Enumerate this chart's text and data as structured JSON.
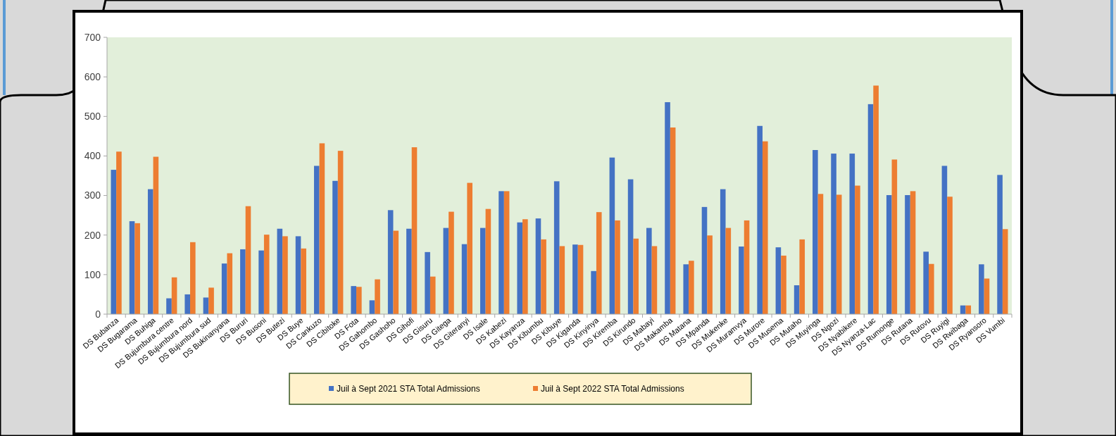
{
  "chart_data": {
    "type": "bar",
    "categories": [
      "DS Bubanza",
      "DS Bugarama",
      "DS Buhiga",
      "DS Bujumbura centre",
      "DS Bujumbura nord",
      "DS Bujumbura sud",
      "DS Bukinanyana",
      "DS Bururi",
      "DS Busoni",
      "DS Butezi",
      "DS Buye",
      "DS Cankuzo",
      "DS Cibitoke",
      "DS Fota",
      "DS Gahombo",
      "DS Gashoho",
      "DS Gihofi",
      "DS Gisuru",
      "DS Gitega",
      "DS Giteranyi",
      "DS Isale",
      "DS Kabezi",
      "DS Kayanza",
      "DS Kibumbu",
      "DS Kibuye",
      "DS Kiganda",
      "DS Kinyinya",
      "DS Kiremba",
      "DS Kirundo",
      "DS Mabayi",
      "DS Makamba",
      "DS Matana",
      "DS Mpanda",
      "DS Mukenke",
      "DS Muramvya",
      "DS Murore",
      "DS Musema",
      "DS Mutaho",
      "DS Muyinga",
      "DS Ngozi",
      "DS Nyabikere",
      "DS Nyanza-Lac",
      "DS Rumonge",
      "DS Rutana",
      "DS Rutovu",
      "DS Ruyigi",
      "DS Rwibaga",
      "DS Ryansoro",
      "DS Vumbi"
    ],
    "series": [
      {
        "name": "Juil à Sept 2021 STA Total Admissions",
        "color": "#4472c4",
        "values": [
          365,
          235,
          316,
          40,
          50,
          42,
          128,
          164,
          161,
          216,
          197,
          375,
          337,
          71,
          35,
          263,
          216,
          157,
          218,
          177,
          218,
          311,
          232,
          242,
          336,
          176,
          109,
          396,
          341,
          218,
          536,
          126,
          271,
          316,
          171,
          476,
          169,
          73,
          415,
          406,
          406,
          531,
          301,
          301,
          158,
          375,
          22,
          126,
          352
        ]
      },
      {
        "name": "Juil à Sept 2022 STA Total Admissions",
        "color": "#ed7d31",
        "values": [
          411,
          230,
          398,
          93,
          182,
          67,
          154,
          273,
          201,
          197,
          166,
          432,
          413,
          69,
          88,
          211,
          422,
          95,
          259,
          332,
          266,
          311,
          240,
          189,
          172,
          175,
          258,
          237,
          191,
          172,
          472,
          135,
          199,
          218,
          237,
          437,
          148,
          189,
          304,
          302,
          325,
          578,
          391,
          311,
          127,
          297,
          22,
          90,
          215
        ]
      }
    ],
    "ylim": [
      0,
      700
    ],
    "yticks": [
      0,
      100,
      200,
      300,
      400,
      500,
      600,
      700
    ],
    "grid": false,
    "legend": "bottom"
  }
}
